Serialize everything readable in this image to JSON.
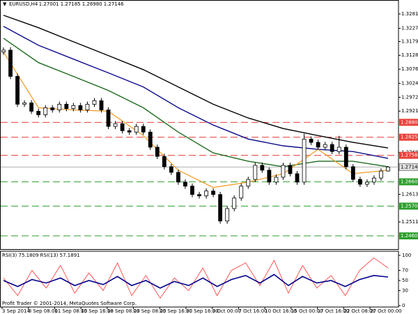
{
  "chart_data": {
    "type": "candlestick",
    "header": {
      "symbol": "EURUSD,H4",
      "prices": [
        "1.27001",
        "1.27185",
        "1.26980",
        "1.27146"
      ]
    },
    "ylim": [
      1.24111,
      1.33325
    ],
    "yticks": [
      {
        "value": 1.3281,
        "label": "1.32810"
      },
      {
        "value": 1.32275,
        "label": "1.32275"
      },
      {
        "value": 1.3179,
        "label": "1.31790"
      },
      {
        "value": 1.3128,
        "label": "1.31280"
      },
      {
        "value": 1.30765,
        "label": "1.30765"
      },
      {
        "value": 1.30245,
        "label": "1.30245"
      },
      {
        "value": 1.29725,
        "label": "1.29725"
      },
      {
        "value": 1.29215,
        "label": "1.29215"
      },
      {
        "value": 1.2768,
        "label": "1.27680"
      },
      {
        "value": 1.26135,
        "label": "1.26135"
      },
      {
        "value": 1.25115,
        "label": "1.25115"
      }
    ],
    "levels": [
      {
        "value": 1.288,
        "label": "1.28800",
        "color": "#e8403a"
      },
      {
        "value": 1.2825,
        "label": "1.28250",
        "color": "#e8403a"
      },
      {
        "value": 1.2758,
        "label": "1.27580",
        "color": "#e8403a"
      },
      {
        "value": 1.266,
        "label": "1.26600",
        "color": "#2e9e2e"
      },
      {
        "value": 1.257,
        "label": "1.25700",
        "color": "#2e9e2e"
      },
      {
        "value": 1.246,
        "label": "1.24600",
        "color": "#2e9e2e"
      }
    ],
    "current_price": {
      "value": 1.27146,
      "label": "1.27146"
    },
    "x_labels": [
      "3 Sep 2014",
      "8 Sep 08:00",
      "11 Sep 08:00",
      "15 Sep 16:00",
      "18 Sep 08:00",
      "23 Sep 08:00",
      "25 Sep 16:00",
      "30 Sep 16:00",
      "3 Oct 00:00",
      "7 Oct 16:00",
      "10 Oct 16:00",
      "15 Oct 00:00",
      "17 Oct 16:00",
      "22 Oct 08:00",
      "27 Oct 00:00"
    ],
    "candles": [
      [
        1.314,
        1.3157,
        1.313,
        1.3147
      ],
      [
        1.3147,
        1.3158,
        1.304,
        1.305
      ],
      [
        1.305,
        1.306,
        1.2937,
        1.2947
      ],
      [
        1.2947,
        1.2962,
        1.2937,
        1.2952
      ],
      [
        1.2952,
        1.2962,
        1.2911,
        1.2921
      ],
      [
        1.2921,
        1.2931,
        1.2898,
        1.2908
      ],
      [
        1.2908,
        1.2944,
        1.2898,
        1.2934
      ],
      [
        1.2934,
        1.2944,
        1.2916,
        1.2926
      ],
      [
        1.2926,
        1.2957,
        1.2916,
        1.2947
      ],
      [
        1.2947,
        1.2957,
        1.2921,
        1.2931
      ],
      [
        1.2931,
        1.2952,
        1.2921,
        1.2942
      ],
      [
        1.2942,
        1.2952,
        1.2916,
        1.2926
      ],
      [
        1.2926,
        1.2957,
        1.2916,
        1.2947
      ],
      [
        1.2947,
        1.297,
        1.2937,
        1.296
      ],
      [
        1.296,
        1.297,
        1.2916,
        1.2926
      ],
      [
        1.2926,
        1.2936,
        1.2855,
        1.2865
      ],
      [
        1.2865,
        1.2885,
        1.2855,
        1.2875
      ],
      [
        1.2875,
        1.2885,
        1.2839,
        1.2849
      ],
      [
        1.2849,
        1.2859,
        1.2834,
        1.2844
      ],
      [
        1.2844,
        1.2875,
        1.2834,
        1.2865
      ],
      [
        1.2865,
        1.2875,
        1.2834,
        1.2844
      ],
      [
        1.2844,
        1.2854,
        1.2778,
        1.2788
      ],
      [
        1.2788,
        1.2798,
        1.2744,
        1.2754
      ],
      [
        1.2754,
        1.2764,
        1.2706,
        1.2716
      ],
      [
        1.2716,
        1.2726,
        1.2685,
        1.2695
      ],
      [
        1.2695,
        1.2705,
        1.2649,
        1.2659
      ],
      [
        1.2659,
        1.2669,
        1.2634,
        1.2644
      ],
      [
        1.2644,
        1.2654,
        1.2603,
        1.2613
      ],
      [
        1.2613,
        1.2623,
        1.2598,
        1.2608
      ],
      [
        1.2608,
        1.2636,
        1.2598,
        1.2626
      ],
      [
        1.2626,
        1.2636,
        1.2603,
        1.2613
      ],
      [
        1.2613,
        1.2623,
        1.2505,
        1.2515
      ],
      [
        1.2515,
        1.2571,
        1.2505,
        1.2561
      ],
      [
        1.2561,
        1.261,
        1.2551,
        1.26
      ],
      [
        1.26,
        1.2654,
        1.259,
        1.2644
      ],
      [
        1.2644,
        1.2679,
        1.2634,
        1.2669
      ],
      [
        1.2669,
        1.2731,
        1.2659,
        1.2721
      ],
      [
        1.2721,
        1.2731,
        1.2693,
        1.2703
      ],
      [
        1.2703,
        1.2713,
        1.2649,
        1.2659
      ],
      [
        1.2659,
        1.2687,
        1.2649,
        1.2677
      ],
      [
        1.2677,
        1.2731,
        1.2667,
        1.2721
      ],
      [
        1.2721,
        1.2731,
        1.268,
        1.269
      ],
      [
        1.269,
        1.27,
        1.2649,
        1.2659
      ],
      [
        1.2659,
        1.2838,
        1.2649,
        1.2818
      ],
      [
        1.2818,
        1.2828,
        1.2796,
        1.2806
      ],
      [
        1.2806,
        1.2816,
        1.2778,
        1.2788
      ],
      [
        1.2788,
        1.2808,
        1.2778,
        1.2798
      ],
      [
        1.2798,
        1.2808,
        1.2762,
        1.2772
      ],
      [
        1.2772,
        1.283,
        1.2762,
        1.2788
      ],
      [
        1.2788,
        1.2798,
        1.2706,
        1.2716
      ],
      [
        1.2716,
        1.2726,
        1.2659,
        1.2669
      ],
      [
        1.2669,
        1.2679,
        1.2641,
        1.2651
      ],
      [
        1.2651,
        1.2669,
        1.2641,
        1.2659
      ],
      [
        1.2659,
        1.2684,
        1.2649,
        1.2674
      ],
      [
        1.2674,
        1.271,
        1.2664,
        1.27
      ],
      [
        1.27001,
        1.27185,
        1.2698,
        1.27146
      ]
    ],
    "moving_averages": [
      {
        "color": "#000000",
        "values": [
          1.3276,
          1.323,
          1.3178,
          1.3127,
          1.3075,
          1.3011,
          1.2947,
          1.2896,
          1.2857,
          1.2831,
          1.2806,
          1.2785
        ]
      },
      {
        "color": "#0b0b8a",
        "values": [
          1.3235,
          1.3165,
          1.3114,
          1.3063,
          1.3011,
          1.2934,
          1.287,
          1.2818,
          1.2793,
          1.278,
          1.2772,
          1.2747
        ]
      },
      {
        "color": "#1e6b1e",
        "values": [
          1.3191,
          1.3101,
          1.305,
          1.2998,
          1.2934,
          1.2844,
          1.2767,
          1.2736,
          1.2716,
          1.2736,
          1.2736,
          1.2716
        ]
      },
      {
        "color": "#f29a1f",
        "values": [
          1.314,
          1.2934,
          1.2926,
          1.2921,
          1.2831,
          1.2703,
          1.2639,
          1.2659,
          1.269,
          1.278,
          1.269,
          1.2703
        ]
      }
    ],
    "indicator": {
      "title": "RSI(3) 75.1809 RSI(13) 57.1891",
      "ylim": [
        0,
        100
      ],
      "yticks": [
        100,
        70,
        50,
        30,
        0
      ],
      "series": [
        {
          "color": "#ff3030",
          "values": [
            55,
            20,
            70,
            35,
            80,
            25,
            65,
            30,
            85,
            20,
            60,
            15,
            55,
            30,
            75,
            20,
            70,
            85,
            40,
            90,
            25,
            80,
            35,
            60,
            20,
            70,
            95,
            75
          ]
        },
        {
          "color": "#00008b",
          "values": [
            50,
            38,
            52,
            45,
            55,
            40,
            50,
            42,
            58,
            40,
            50,
            35,
            48,
            40,
            55,
            38,
            52,
            60,
            45,
            62,
            40,
            58,
            45,
            50,
            38,
            52,
            60,
            57
          ]
        }
      ]
    },
    "copyright": "Profit Trader © 2001-2014, MetaQuotes Software Corp."
  }
}
